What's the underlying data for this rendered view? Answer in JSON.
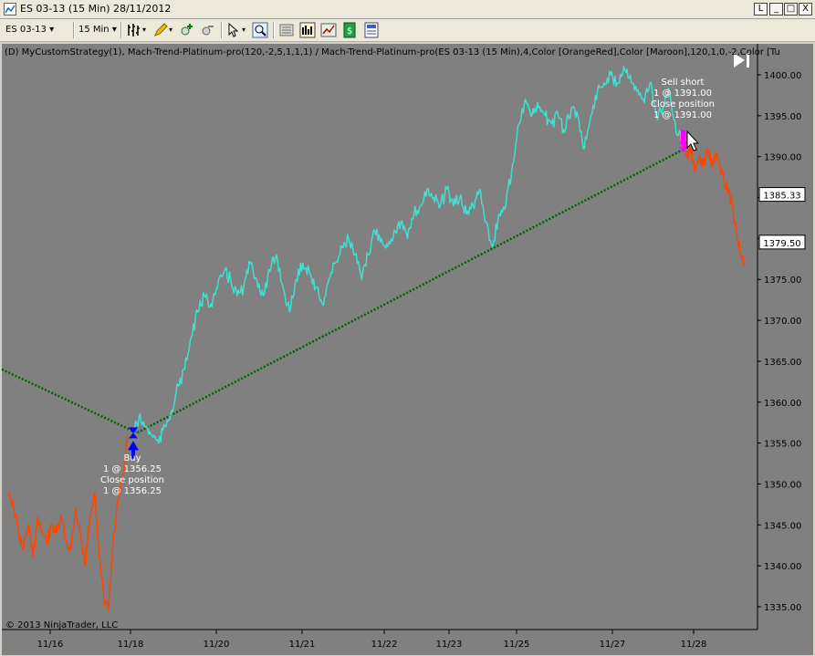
{
  "window": {
    "title": "ES 03-13 (15 Min)  28/11/2012",
    "buttons": [
      "L",
      "_",
      "□",
      "X"
    ]
  },
  "toolbar": {
    "instrument": "ES 03-13",
    "interval": "15 Min",
    "icons": [
      "bar-type-icon",
      "drawing-pencil-icon",
      "zoom-in-icon",
      "zoom-out-icon",
      "cursor-icon",
      "magnifier-icon",
      "properties-icon",
      "indicators-icon",
      "strategies-icon",
      "data-box-icon",
      "chart-trader-icon"
    ]
  },
  "chart_info": "(D) MyCustomStrategy(1), Mach-Trend-Platinum-pro(120,-2,5,1,1,1) / Mach-Trend-Platinum-pro(ES 03-13 (15 Min),4,Color [OrangeRed],Color [Maroon],120,1,0,-2,Color [Tu",
  "copyright": "© 2013 NinjaTrader, LLC",
  "colors": {
    "background": "#808080",
    "up_trend": "#40e0d0",
    "down_trend": "#ff4500",
    "trend_line": "#006400",
    "buy_marker": "#0000ff",
    "sell_marker": "#ff00ff"
  },
  "chart_data": {
    "type": "line",
    "title": "",
    "ylim": [
      1332,
      1403
    ],
    "y_ticks": [
      "1400.00",
      "1395.00",
      "1390.00",
      "1385.00",
      "1380.00",
      "1375.00",
      "1370.00",
      "1365.00",
      "1360.00",
      "1355.00",
      "1350.00",
      "1345.00",
      "1340.00",
      "1335.00"
    ],
    "x_ticks": [
      "11/16",
      "11/18",
      "11/20",
      "11/21",
      "11/22",
      "11/23",
      "11/25",
      "11/27",
      "11/28"
    ],
    "price_labels": [
      "1385.33",
      "1379.50"
    ],
    "series": [
      {
        "color_key": "down_trend",
        "values": [
          1349,
          1347,
          1344,
          1342,
          1345,
          1341,
          1346,
          1344,
          1343,
          1345,
          1344,
          1346,
          1343,
          1342,
          1347,
          1344,
          1340,
          1346,
          1349,
          1341,
          1336,
          1335,
          1344,
          1348,
          1351,
          1356
        ]
      },
      {
        "color_key": "up_trend",
        "values": [
          1356,
          1358,
          1357,
          1356,
          1355,
          1357,
          1359,
          1362,
          1364,
          1368,
          1371,
          1373,
          1372,
          1374,
          1376,
          1375,
          1373,
          1374,
          1377,
          1375,
          1373,
          1376,
          1378,
          1374,
          1371,
          1375,
          1377,
          1376,
          1374,
          1372,
          1375,
          1377,
          1379,
          1380,
          1378,
          1375,
          1378,
          1381,
          1380,
          1379,
          1381,
          1382,
          1380,
          1383,
          1384,
          1386,
          1385,
          1384,
          1386,
          1384,
          1385,
          1383,
          1384,
          1386,
          1382,
          1379,
          1383,
          1384,
          1389,
          1394,
          1397,
          1395,
          1396,
          1395,
          1394,
          1395,
          1393,
          1396,
          1395,
          1391,
          1395,
          1398,
          1399,
          1400,
          1399,
          1401,
          1400,
          1398,
          1397,
          1399,
          1395,
          1396,
          1398,
          1393,
          1392
        ]
      },
      {
        "color_key": "down_trend",
        "values": [
          1392,
          1390,
          1391,
          1388,
          1390,
          1389,
          1391,
          1389,
          1390,
          1389,
          1387,
          1386,
          1384,
          1381,
          1378,
          1377
        ]
      }
    ],
    "trend_line": [
      [
        0,
        1364
      ],
      [
        148,
        1356.25
      ],
      [
        749,
        1391
      ]
    ],
    "trades": [
      {
        "type": "buy",
        "labels": [
          "Buy",
          "1 @ 1356.25",
          "Close position",
          "1 @ 1356.25"
        ],
        "price": 1356.25
      },
      {
        "type": "sell_short",
        "labels": [
          "Sell short",
          "1 @ 1391.00",
          "Close position",
          "1 @ 1391.00"
        ],
        "price": 1391.0
      }
    ]
  }
}
